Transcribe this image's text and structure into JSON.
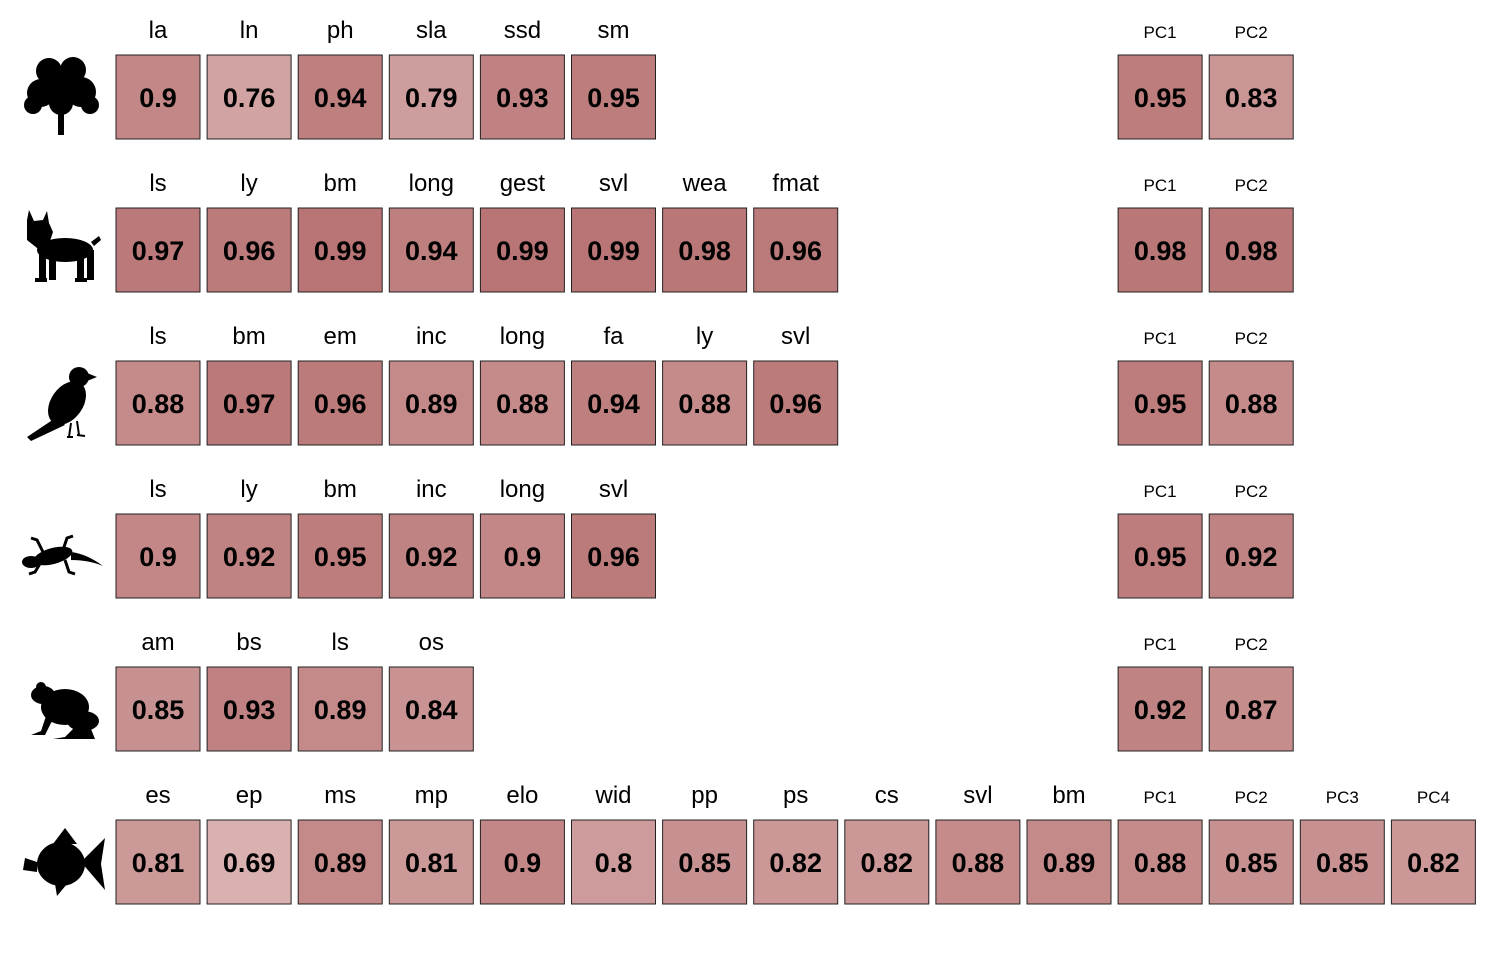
{
  "chart_data": {
    "type": "heatmap",
    "color_low": "#d9b1b1",
    "color_high": "#b97575",
    "value_range": [
      0.69,
      0.99
    ],
    "rows": [
      {
        "icon": "tree-icon",
        "traits": [
          {
            "label": "la",
            "value": "0.9"
          },
          {
            "label": "ln",
            "value": "0.76"
          },
          {
            "label": "ph",
            "value": "0.94"
          },
          {
            "label": "sla",
            "value": "0.79"
          },
          {
            "label": "ssd",
            "value": "0.93"
          },
          {
            "label": "sm",
            "value": "0.95"
          }
        ],
        "pcs": [
          {
            "label": "PC1",
            "value": "0.95"
          },
          {
            "label": "PC2",
            "value": "0.83"
          }
        ]
      },
      {
        "icon": "lynx-icon",
        "traits": [
          {
            "label": "ls",
            "value": "0.97"
          },
          {
            "label": "ly",
            "value": "0.96"
          },
          {
            "label": "bm",
            "value": "0.99"
          },
          {
            "label": "long",
            "value": "0.94"
          },
          {
            "label": "gest",
            "value": "0.99"
          },
          {
            "label": "svl",
            "value": "0.99"
          },
          {
            "label": "wea",
            "value": "0.98"
          },
          {
            "label": "fmat",
            "value": "0.96"
          }
        ],
        "pcs": [
          {
            "label": "PC1",
            "value": "0.98"
          },
          {
            "label": "PC2",
            "value": "0.98"
          }
        ]
      },
      {
        "icon": "bird-icon",
        "traits": [
          {
            "label": "ls",
            "value": "0.88"
          },
          {
            "label": "bm",
            "value": "0.97"
          },
          {
            "label": "em",
            "value": "0.96"
          },
          {
            "label": "inc",
            "value": "0.89"
          },
          {
            "label": "long",
            "value": "0.88"
          },
          {
            "label": "fa",
            "value": "0.94"
          },
          {
            "label": "ly",
            "value": "0.88"
          },
          {
            "label": "svl",
            "value": "0.96"
          }
        ],
        "pcs": [
          {
            "label": "PC1",
            "value": "0.95"
          },
          {
            "label": "PC2",
            "value": "0.88"
          }
        ]
      },
      {
        "icon": "lizard-icon",
        "traits": [
          {
            "label": "ls",
            "value": "0.9"
          },
          {
            "label": "ly",
            "value": "0.92"
          },
          {
            "label": "bm",
            "value": "0.95"
          },
          {
            "label": "inc",
            "value": "0.92"
          },
          {
            "label": "long",
            "value": "0.9"
          },
          {
            "label": "svl",
            "value": "0.96"
          }
        ],
        "pcs": [
          {
            "label": "PC1",
            "value": "0.95"
          },
          {
            "label": "PC2",
            "value": "0.92"
          }
        ]
      },
      {
        "icon": "frog-icon",
        "traits": [
          {
            "label": "am",
            "value": "0.85"
          },
          {
            "label": "bs",
            "value": "0.93"
          },
          {
            "label": "ls",
            "value": "0.89"
          },
          {
            "label": "os",
            "value": "0.84"
          }
        ],
        "pcs": [
          {
            "label": "PC1",
            "value": "0.92"
          },
          {
            "label": "PC2",
            "value": "0.87"
          }
        ]
      },
      {
        "icon": "fish-icon",
        "traits": [
          {
            "label": "es",
            "value": "0.81"
          },
          {
            "label": "ep",
            "value": "0.69"
          },
          {
            "label": "ms",
            "value": "0.89"
          },
          {
            "label": "mp",
            "value": "0.81"
          },
          {
            "label": "elo",
            "value": "0.9"
          },
          {
            "label": "wid",
            "value": "0.8"
          },
          {
            "label": "pp",
            "value": "0.85"
          },
          {
            "label": "ps",
            "value": "0.82"
          },
          {
            "label": "cs",
            "value": "0.82"
          },
          {
            "label": "svl",
            "value": "0.88"
          },
          {
            "label": "bm",
            "value": "0.89"
          }
        ],
        "pcs": [
          {
            "label": "PC1",
            "value": "0.88"
          },
          {
            "label": "PC2",
            "value": "0.85"
          },
          {
            "label": "PC3",
            "value": "0.85"
          },
          {
            "label": "PC4",
            "value": "0.82"
          }
        ]
      }
    ]
  }
}
